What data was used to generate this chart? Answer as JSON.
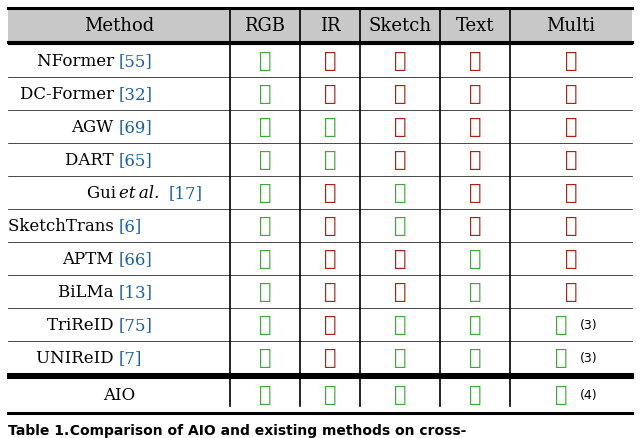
{
  "headers": [
    "Method",
    "RGB",
    "IR",
    "Sketch",
    "Text",
    "Multi"
  ],
  "rows": [
    {
      "name": "NFormer",
      "ref": "[55]",
      "rgb": 1,
      "ir": 0,
      "sketch": 0,
      "text": 0,
      "multi": 0,
      "note": ""
    },
    {
      "name": "DC-Former",
      "ref": "[32]",
      "rgb": 1,
      "ir": 0,
      "sketch": 0,
      "text": 0,
      "multi": 0,
      "note": ""
    },
    {
      "name": "AGW",
      "ref": "[69]",
      "rgb": 1,
      "ir": 1,
      "sketch": 0,
      "text": 0,
      "multi": 0,
      "note": ""
    },
    {
      "name": "DART",
      "ref": "[65]",
      "rgb": 1,
      "ir": 1,
      "sketch": 0,
      "text": 0,
      "multi": 0,
      "note": ""
    },
    {
      "name": "Gui et al.",
      "ref": "[17]",
      "rgb": 1,
      "ir": 0,
      "sketch": 1,
      "text": 0,
      "multi": 0,
      "note": "",
      "italic": true
    },
    {
      "name": "SketchTrans",
      "ref": "[6]",
      "rgb": 1,
      "ir": 0,
      "sketch": 1,
      "text": 0,
      "multi": 0,
      "note": ""
    },
    {
      "name": "APTM",
      "ref": "[66]",
      "rgb": 1,
      "ir": 0,
      "sketch": 0,
      "text": 1,
      "multi": 0,
      "note": ""
    },
    {
      "name": "BiLMa",
      "ref": "[13]",
      "rgb": 1,
      "ir": 0,
      "sketch": 0,
      "text": 1,
      "multi": 0,
      "note": ""
    },
    {
      "name": "TriReID",
      "ref": "[75]",
      "rgb": 1,
      "ir": 0,
      "sketch": 1,
      "text": 1,
      "multi": 1,
      "note": "(3)"
    },
    {
      "name": "UNIReID",
      "ref": "[7]",
      "rgb": 1,
      "ir": 0,
      "sketch": 1,
      "text": 1,
      "multi": 1,
      "note": "(3)"
    }
  ],
  "aio": {
    "name": "AIO",
    "ref": "",
    "rgb": 1,
    "ir": 1,
    "sketch": 1,
    "text": 1,
    "multi": 1,
    "note": "(4)"
  },
  "check_color": "#3aaa35",
  "cross_color": "#aa2211",
  "ref_color": "#1a5fa8",
  "header_bg": "#c8c8c8",
  "caption_bold": "Table 1.",
  "caption_rest": "  Comparison of AIO and existing methods on cross-"
}
